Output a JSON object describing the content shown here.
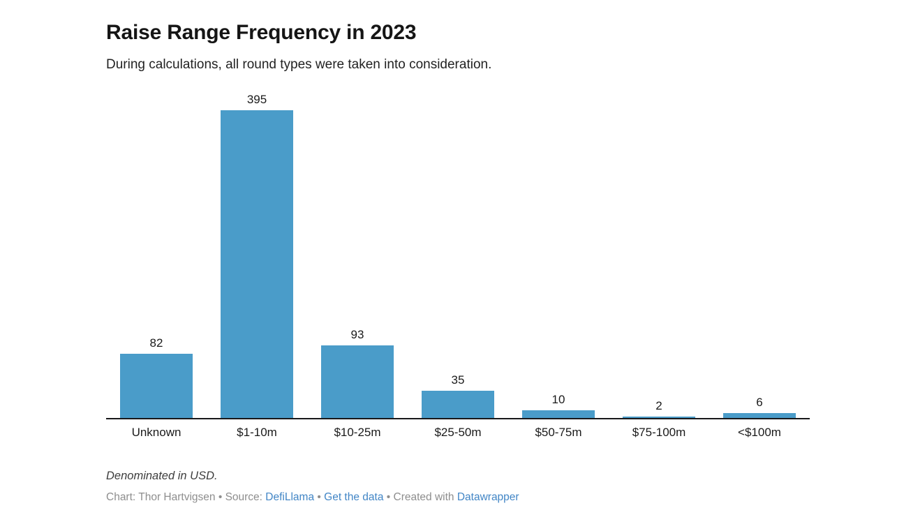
{
  "header": {
    "title": "Raise Range Frequency in 2023",
    "subtitle": "During calculations, all round types were taken into consideration."
  },
  "chart_data": {
    "type": "bar",
    "categories": [
      "Unknown",
      "$1-10m",
      "$10-25m",
      "$25-50m",
      "$50-75m",
      "$75-100m",
      "<$100m"
    ],
    "values": [
      82,
      395,
      93,
      35,
      10,
      2,
      6
    ],
    "title": "Raise Range Frequency in 2023",
    "xlabel": "",
    "ylabel": "",
    "ylim": [
      0,
      395
    ],
    "grid": false,
    "legend": false,
    "value_labels": [
      "82",
      "395",
      "93",
      "35",
      "10",
      "2",
      "6"
    ],
    "bar_color": "#4a9cc9",
    "axis_color": "#18181a"
  },
  "footer": {
    "note": "Denominated in USD.",
    "byline": {
      "chart_credit": "Chart: Thor Hartvigsen",
      "separator": "•",
      "source_label": "Source:",
      "source_link": "DefiLlama",
      "data_link": "Get the data",
      "created_with_label": "Created with",
      "tool_link": "Datawrapper"
    }
  },
  "colors": {
    "bar": "#4a9cc9",
    "link": "#4286c6",
    "byline_gray": "#8e8e8e",
    "axis": "#18181a"
  }
}
